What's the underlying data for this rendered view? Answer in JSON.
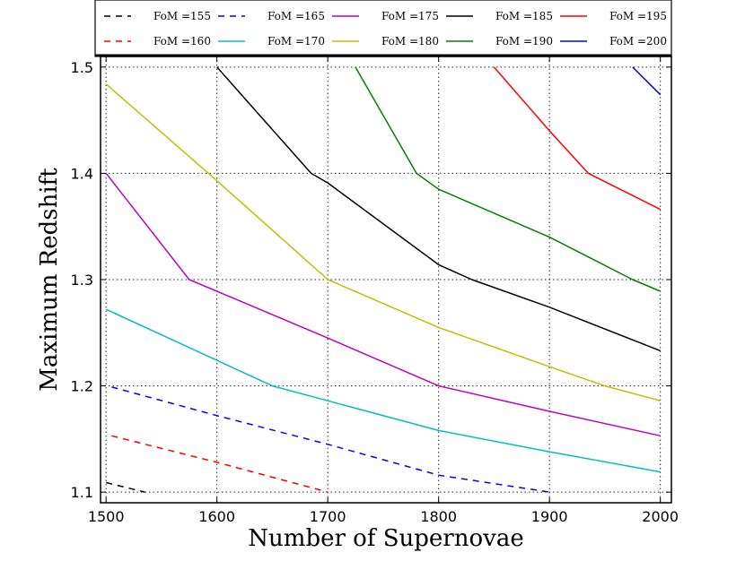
{
  "chart_data": {
    "type": "line",
    "title": "",
    "xlabel": "Number of Supernovae",
    "ylabel": "Maximum Redshift",
    "xlim": [
      1495,
      2010
    ],
    "ylim": [
      1.09,
      1.51
    ],
    "xticks": [
      1500,
      1600,
      1700,
      1800,
      1900,
      2000
    ],
    "xtick_labels": [
      "1500",
      "1600",
      "1700",
      "1800",
      "1900",
      "2000"
    ],
    "yticks": [
      1.1,
      1.2,
      1.3,
      1.4,
      1.5
    ],
    "ytick_labels": [
      "1.1",
      "1.2",
      "1.3",
      "1.4",
      "1.5"
    ],
    "grid": true,
    "legend_position": "top",
    "series": [
      {
        "name": "FoM =155",
        "color": "#000000",
        "style": "dashed",
        "x": [
          1500,
          1535
        ],
        "y": [
          1.109,
          1.1
        ]
      },
      {
        "name": "FoM =160",
        "color": "#ff0000",
        "style": "dashed",
        "x": [
          1505,
          1600,
          1700
        ],
        "y": [
          1.153,
          1.128,
          1.1
        ]
      },
      {
        "name": "FoM =165",
        "color": "#0000ff",
        "style": "dashed",
        "x": [
          1505,
          1600,
          1700,
          1800,
          1900
        ],
        "y": [
          1.199,
          1.172,
          1.145,
          1.116,
          1.1
        ]
      },
      {
        "name": "FoM =170",
        "color": "#00bfbf",
        "style": "solid",
        "x": [
          1500,
          1600,
          1650,
          1700,
          1800,
          1900,
          2000
        ],
        "y": [
          1.272,
          1.224,
          1.2,
          1.186,
          1.158,
          1.138,
          1.119
        ]
      },
      {
        "name": "FoM =175",
        "color": "#bf00bf",
        "style": "solid",
        "x": [
          1500,
          1575,
          1700,
          1800,
          1900,
          2000
        ],
        "y": [
          1.4,
          1.3,
          1.245,
          1.2,
          1.176,
          1.153
        ]
      },
      {
        "name": "FoM =180",
        "color": "#bfbf00",
        "style": "solid",
        "x": [
          1500,
          1600,
          1700,
          1800,
          1900,
          1950,
          2000
        ],
        "y": [
          1.484,
          1.393,
          1.3,
          1.255,
          1.218,
          1.2,
          1.186
        ]
      },
      {
        "name": "FoM =185",
        "color": "#000000",
        "style": "solid",
        "x": [
          1600,
          1685,
          1700,
          1800,
          1830,
          1900,
          2000
        ],
        "y": [
          1.5,
          1.4,
          1.391,
          1.314,
          1.3,
          1.274,
          1.233
        ]
      },
      {
        "name": "FoM =190",
        "color": "#008000",
        "style": "solid",
        "x": [
          1725,
          1780,
          1800,
          1900,
          1975,
          2000
        ],
        "y": [
          1.5,
          1.4,
          1.385,
          1.34,
          1.3,
          1.289
        ]
      },
      {
        "name": "FoM =195",
        "color": "#ff0000",
        "style": "solid",
        "x": [
          1850,
          1900,
          1935,
          2000
        ],
        "y": [
          1.5,
          1.44,
          1.4,
          1.366
        ]
      },
      {
        "name": "FoM =200",
        "color": "#0000ff",
        "style": "solid",
        "x": [
          1975,
          2000
        ],
        "y": [
          1.5,
          1.474
        ]
      }
    ],
    "legend_order": [
      0,
      2,
      4,
      6,
      8,
      1,
      3,
      5,
      7,
      9
    ]
  }
}
